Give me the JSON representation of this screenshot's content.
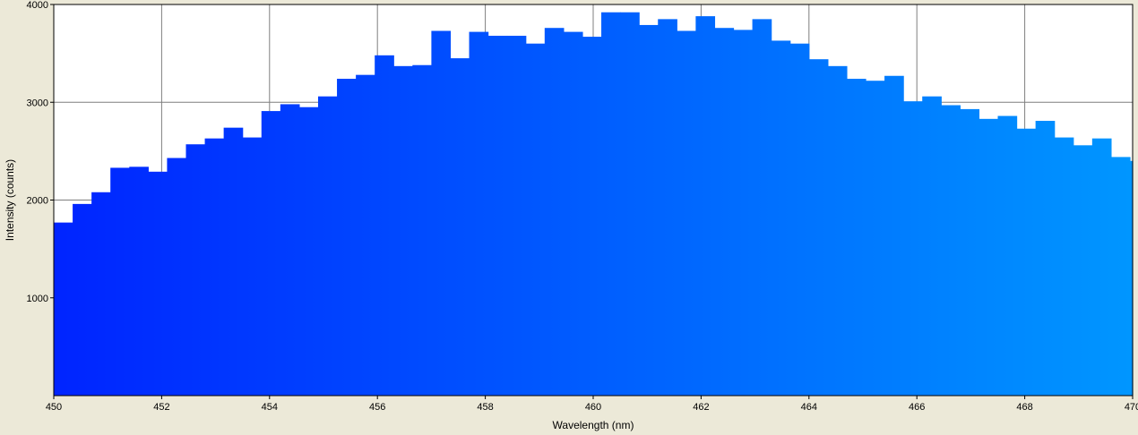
{
  "chart_data": {
    "type": "bar",
    "title": "",
    "xlabel": "Wavelength (nm)",
    "ylabel": "Intensity (counts)",
    "xlim": [
      450,
      470
    ],
    "ylim": [
      0,
      4000
    ],
    "x_ticks": [
      "450",
      "452",
      "454",
      "456",
      "458",
      "460",
      "462",
      "464",
      "466",
      "468",
      "470"
    ],
    "y_ticks": [
      "1000",
      "2000",
      "3000",
      "4000"
    ],
    "grid": true,
    "bin_start": 450,
    "bin_width": 0.35,
    "values": [
      1770,
      1960,
      2080,
      2330,
      2340,
      2290,
      2430,
      2570,
      2630,
      2740,
      2640,
      2910,
      2980,
      2950,
      3060,
      3240,
      3280,
      3480,
      3370,
      3380,
      3730,
      3450,
      3720,
      3680,
      3680,
      3600,
      3760,
      3720,
      3670,
      3920,
      3920,
      3790,
      3850,
      3730,
      3880,
      3760,
      3740,
      3850,
      3630,
      3600,
      3440,
      3370,
      3240,
      3220,
      3270,
      3010,
      3060,
      2970,
      2930,
      2830,
      2860,
      2730,
      2810,
      2640,
      2560,
      2630,
      2440,
      2400
    ],
    "colors": {
      "bar_start": "#0024ff",
      "bar_end": "#0096ff",
      "plot_background": "#ffffff",
      "grid": "#7f7f7f",
      "frame_background": "#ece9d8"
    }
  }
}
